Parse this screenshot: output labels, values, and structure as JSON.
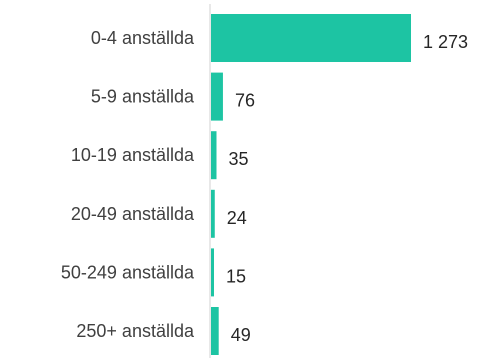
{
  "chart_data": {
    "type": "bar",
    "orientation": "horizontal",
    "categories": [
      "0-4 anställda",
      "5-9 anställda",
      "10-19 anställda",
      "20-49 anställda",
      "50-249 anställda",
      "250+ anställda"
    ],
    "values": [
      1273,
      76,
      35,
      24,
      15,
      49
    ],
    "value_labels": [
      "1 273",
      "76",
      "35",
      "24",
      "15",
      "49"
    ],
    "title": "",
    "xlabel": "",
    "ylabel": "",
    "xlim": [
      0,
      1273
    ],
    "grid": false,
    "legend": "none",
    "bar_color": "#1dc4a3",
    "axis_color": "#d0d0d0"
  }
}
